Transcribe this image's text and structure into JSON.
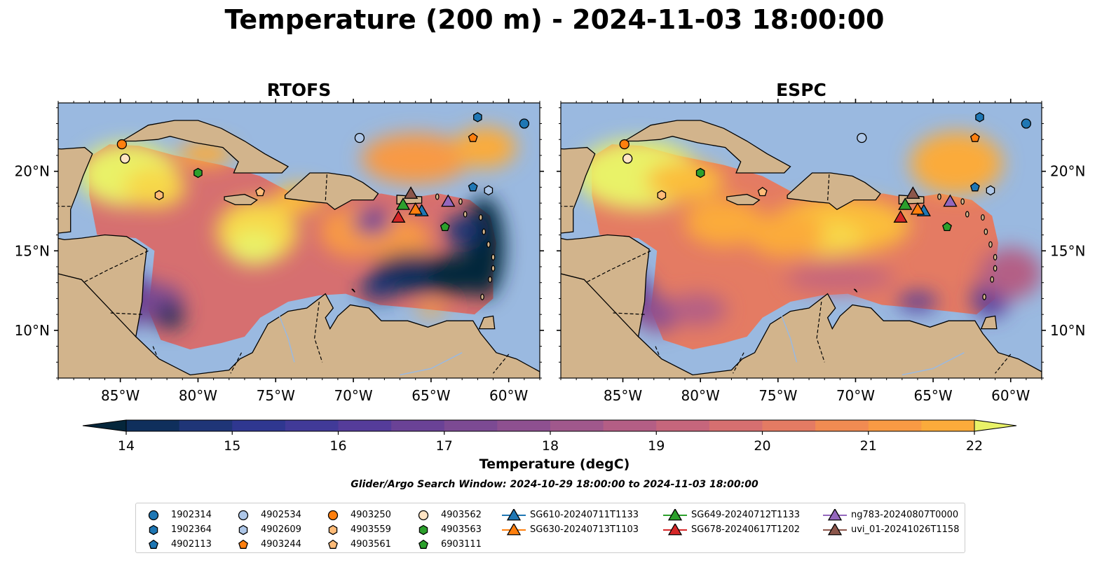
{
  "title": "Temperature (200 m) - 2024-11-03 18:00:00",
  "colors": {
    "land": "#d2b48c",
    "shelf": "#9ab9e0",
    "deep_cold": "#05263b",
    "colormap": [
      "#05263b",
      "#0f2f5c",
      "#1f3577",
      "#2f3790",
      "#413a98",
      "#553c9a",
      "#6a4296",
      "#7c4a93",
      "#8e5090",
      "#a0588c",
      "#b45e85",
      "#c6667c",
      "#d66f70",
      "#e47b63",
      "#f18b52",
      "#f89a44",
      "#fbab3b",
      "#fbbd3a",
      "#f7d84a",
      "#e9f268"
    ]
  },
  "panels": [
    {
      "title": "RTOFS"
    },
    {
      "title": "ESPC"
    }
  ],
  "map": {
    "lon_range": [
      -89.0,
      -58.0
    ],
    "lat_range": [
      7.0,
      24.3
    ],
    "lon_ticks": [
      "85°W",
      "80°W",
      "75°W",
      "70°W",
      "65°W",
      "60°W"
    ],
    "lat_ticks": [
      "20°N",
      "15°N",
      "10°N"
    ]
  },
  "colorbar": {
    "label": "Temperature (degC)",
    "min": 14,
    "max": 22,
    "step": 0.5,
    "ticks": [
      "14",
      "15",
      "16",
      "17",
      "18",
      "19",
      "20",
      "21",
      "22"
    ]
  },
  "search_window": "Glider/Argo Search Window: 2024-10-29 18:00:00 to 2024-11-03 18:00:00",
  "argo": [
    {
      "id": "1902314",
      "marker": "circle",
      "color": "#1f77b4",
      "lon": -59.0,
      "lat": 23.0
    },
    {
      "id": "1902364",
      "marker": "hexagon",
      "color": "#1f77b4",
      "lon": -62.0,
      "lat": 23.4
    },
    {
      "id": "4902113",
      "marker": "pentagon",
      "color": "#1f77b4",
      "lon": -62.3,
      "lat": 19.0
    },
    {
      "id": "4902534",
      "marker": "circle",
      "color": "#aec7e8",
      "lon": -69.6,
      "lat": 22.1
    },
    {
      "id": "4902609",
      "marker": "hexagon",
      "color": "#aec7e8",
      "lon": -61.3,
      "lat": 18.8
    },
    {
      "id": "4903244",
      "marker": "pentagon",
      "color": "#ff7f0e",
      "lon": -62.3,
      "lat": 22.1
    },
    {
      "id": "4903250",
      "marker": "circle",
      "color": "#ff7f0e",
      "lon": -84.9,
      "lat": 21.7
    },
    {
      "id": "4903559",
      "marker": "hexagon",
      "color": "#ffbb78",
      "lon": -82.5,
      "lat": 18.5
    },
    {
      "id": "4903561",
      "marker": "pentagon",
      "color": "#ffbb78",
      "lon": -76.0,
      "lat": 18.7
    },
    {
      "id": "4903562",
      "marker": "circle",
      "color": "#ffe4c4",
      "lon": -84.7,
      "lat": 20.8
    },
    {
      "id": "4903563",
      "marker": "hexagon",
      "color": "#2ca02c",
      "lon": -80.0,
      "lat": 19.9
    },
    {
      "id": "6903111",
      "marker": "pentagon",
      "color": "#2ca02c",
      "lon": -64.1,
      "lat": 16.5
    }
  ],
  "gliders": [
    {
      "id": "SG610-20240711T1133",
      "color": "#1f77b4",
      "lon": -65.6,
      "lat": 17.5
    },
    {
      "id": "SG630-20240713T1103",
      "color": "#ff7f0e",
      "lon": -66.0,
      "lat": 17.6
    },
    {
      "id": "SG649-20240712T1133",
      "color": "#2ca02c",
      "lon": -66.8,
      "lat": 17.9
    },
    {
      "id": "SG678-20240617T1202",
      "color": "#d62728",
      "lon": -67.1,
      "lat": 17.1
    },
    {
      "id": "ng783-20240807T0000",
      "color": "#9467bd",
      "lon": -63.9,
      "lat": 18.1
    },
    {
      "id": "uvi_01-20241026T1158",
      "color": "#8c564b",
      "lon": -66.3,
      "lat": 18.6
    }
  ]
}
